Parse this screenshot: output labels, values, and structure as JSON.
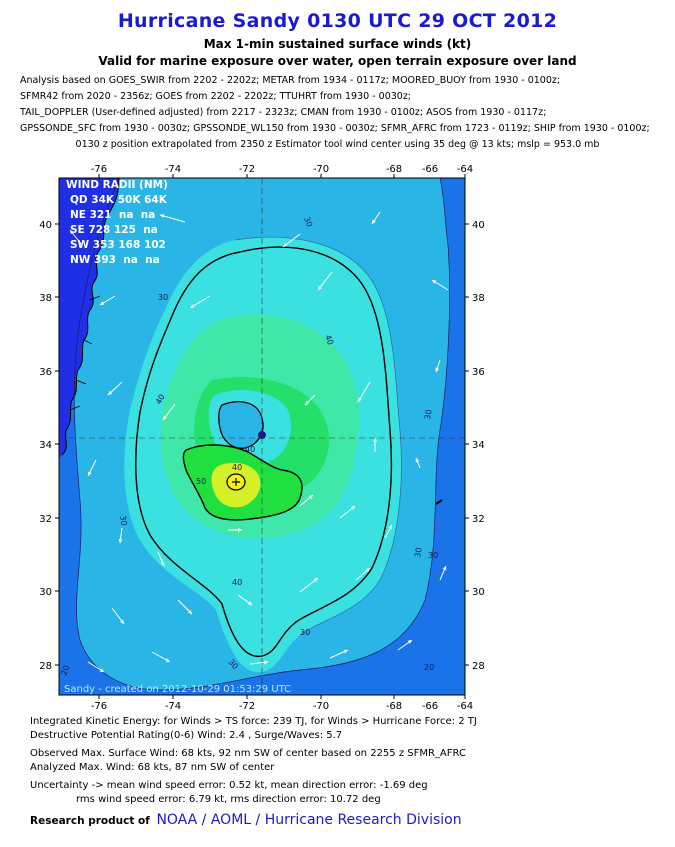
{
  "header": {
    "title": "Hurricane Sandy 0130 UTC 29 OCT 2012",
    "subtitle1": "Max 1-min sustained surface winds (kt)",
    "subtitle2": "Valid for marine exposure over water, open terrain exposure over land"
  },
  "analysis_lines": [
    "Analysis based on GOES_SWIR from 2202 - 2202z; METAR from 1934 - 0117z; MOORED_BUOY from 1930 - 0100z;",
    "SFMR42 from 2020 - 2356z; GOES from 2202 - 2202z; TTUHRT from 1930 - 0030z;",
    "TAIL_DOPPLER (User-defined adjusted) from 2217 - 2323z; CMAN from 1930 - 0100z; ASOS from 1930 - 0117z;",
    "GPSSONDE_SFC from 1930 - 0030z; GPSSONDE_WL150 from 1930 - 0030z; SFMR_AFRC from 1723 - 0119z; SHIP from 1930 - 0100z;"
  ],
  "position_line": "0130 z position extrapolated from 2350 z Estimator tool wind center using 35 deg @ 13 kts; mslp = 953.0 mb",
  "map": {
    "lon_ticks": [
      "-76",
      "-74",
      "-72",
      "-70",
      "-68",
      "-66",
      "-64"
    ],
    "lat_ticks": [
      "40",
      "38",
      "36",
      "34",
      "32",
      "30",
      "28"
    ],
    "wind_radii": {
      "title": "WIND RADII (NM)",
      "header": "QD 34K 50K 64K",
      "rows": [
        "NE 321  na  na",
        "SE 728 125  na",
        "SW 353 168 102",
        "NW 393  na  na"
      ]
    },
    "contour_labels": [
      "30",
      "30",
      "30",
      "30",
      "30",
      "30",
      "30",
      "40",
      "40",
      "40",
      "40",
      "40",
      "50",
      "20",
      "20",
      "30"
    ],
    "credit": "Sandy - created on 2012-10-29 01:53:29 UTC",
    "colors": {
      "land": "#1f2fe6",
      "c20": "#1a73e8",
      "c30": "#29b6e6",
      "c40": "#3be0e0",
      "c50": "#3fe8a8",
      "c60": "#22e06a",
      "c64": "#20e040",
      "c68": "#d6f028",
      "center": "#f7f200"
    }
  },
  "footer": {
    "ike": "Integrated Kinetic Energy: for Winds > TS force: 239 TJ, for Winds > Hurricane Force: 2 TJ",
    "dpr": "Destructive Potential Rating(0-6)  Wind: 2.4 , Surge/Waves: 5.7",
    "obs_max": "Observed Max. Surface Wind: 68 kts, 92 nm SW of center based on 2255 z SFMR_AFRC",
    "analyzed_max": "Analyzed Max. Wind: 68 kts, 87 nm  SW of center",
    "uncertainty1": "Uncertainty -> mean wind speed error: 0.52 kt, mean direction error:  -1.69 deg",
    "uncertainty2": "rms wind speed error: 6.79 kt, rms direction error: 10.72 deg",
    "research_label": "Research product of",
    "org": "NOAA  /  AOML  /  Hurricane Research Division"
  }
}
